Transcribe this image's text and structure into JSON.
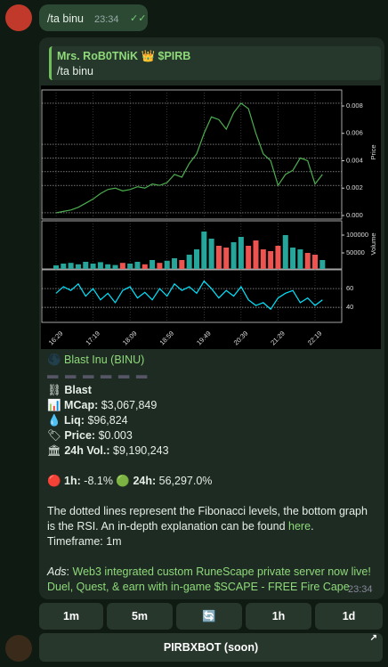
{
  "user_message": {
    "text": "/ta binu",
    "time": "23:34"
  },
  "bot_message": {
    "quote_author": "Mrs. RoB0TNiK 👑 $PIRB",
    "quote_text": "/ta binu",
    "token": "Blast Inu (BINU)",
    "chain": "Blast",
    "stats": [
      {
        "label": "MCap:",
        "value": "$3,067,849"
      },
      {
        "label": "Liq:",
        "value": "$96,824"
      },
      {
        "label": "Price:",
        "value": "$0.003"
      },
      {
        "label": "24h Vol.:",
        "value": "$9,190,243"
      }
    ],
    "change_1h": {
      "label": "1h:",
      "value": "-8.1%"
    },
    "change_24h": {
      "label": "24h:",
      "value": "56,297.0%"
    },
    "description": "The dotted lines represent the Fibonacci levels, the bottom graph is the RSI. An in-depth explanation can be found ",
    "link": "here",
    "description_end": ".",
    "timeframe": "Timeframe: 1m",
    "ads_label": "Ads",
    "ads_text": "Web3 integrated custom RuneScape private server now live! Duel, Quest, & earn with in-game $SCAPE - FREE Fire Cape",
    "time": "23:34"
  },
  "buttons": [
    "1m",
    "5m",
    "🔄",
    "1h",
    "1d"
  ],
  "wide_button": "PIRBXBOT (soon)",
  "chart_data": {
    "type": "line",
    "y_label": "Price",
    "y2_label": "Volume",
    "categories": [
      "16:29",
      null,
      null,
      null,
      null,
      "17:19",
      null,
      null,
      null,
      null,
      "18:09",
      null,
      null,
      null,
      null,
      "18:59",
      null,
      null,
      null,
      null,
      "19:49",
      null,
      null,
      null,
      null,
      "20:39",
      null,
      null,
      null,
      null,
      "21:29",
      null,
      null,
      null,
      null,
      "22:19",
      null
    ],
    "price": [
      0.0002,
      0.0003,
      0.0004,
      0.0006,
      0.0009,
      0.0012,
      0.0016,
      0.0019,
      0.002,
      0.0018,
      0.0019,
      0.0021,
      0.002,
      0.0023,
      0.0022,
      0.0024,
      0.003,
      0.0028,
      0.0038,
      0.0045,
      0.006,
      0.0072,
      0.007,
      0.0063,
      0.0075,
      0.0082,
      0.0078,
      0.006,
      0.0045,
      0.004,
      0.0022,
      0.003,
      0.0033,
      0.0042,
      0.004,
      0.0023,
      0.003
    ],
    "volume": [
      15000,
      20000,
      22000,
      18000,
      25000,
      20000,
      24000,
      18000,
      16000,
      22000,
      20000,
      25000,
      18000,
      30000,
      22000,
      28000,
      35000,
      30000,
      45000,
      60000,
      110000,
      90000,
      70000,
      65000,
      80000,
      95000,
      70000,
      85000,
      60000,
      55000,
      70000,
      100000,
      65000,
      60000,
      50000,
      45000,
      30000
    ],
    "rsi": [
      55,
      62,
      58,
      65,
      52,
      60,
      48,
      55,
      45,
      58,
      62,
      50,
      56,
      48,
      60,
      52,
      65,
      58,
      62,
      55,
      68,
      60,
      50,
      58,
      52,
      62,
      48,
      42,
      45,
      38,
      50,
      55,
      58,
      45,
      50,
      42,
      48
    ],
    "fib_levels": [
      0.0082,
      0.0052,
      0.0042,
      0.0032,
      0.0022,
      0.0002
    ],
    "ylim": [
      -0.00026,
      0.00917
    ],
    "yticks": [
      {
        "value": 0,
        "label": "0.000"
      },
      {
        "value": 0.002,
        "label": "0.002"
      },
      {
        "value": 0.004,
        "label": "0.004"
      },
      {
        "value": 0.006,
        "label": "0.006"
      },
      {
        "value": 0.008,
        "label": "0.008"
      }
    ],
    "y2lim": [
      5000,
      140000
    ],
    "y2ticks": [
      50000,
      100000
    ],
    "rsi_lim": [
      24,
      80
    ],
    "rsi_ticks": [
      40,
      60
    ],
    "up_color": "#26a69a",
    "down_color": "#ef5350",
    "price_color": "#4caf50",
    "rsi_color": "#00e5ff"
  }
}
